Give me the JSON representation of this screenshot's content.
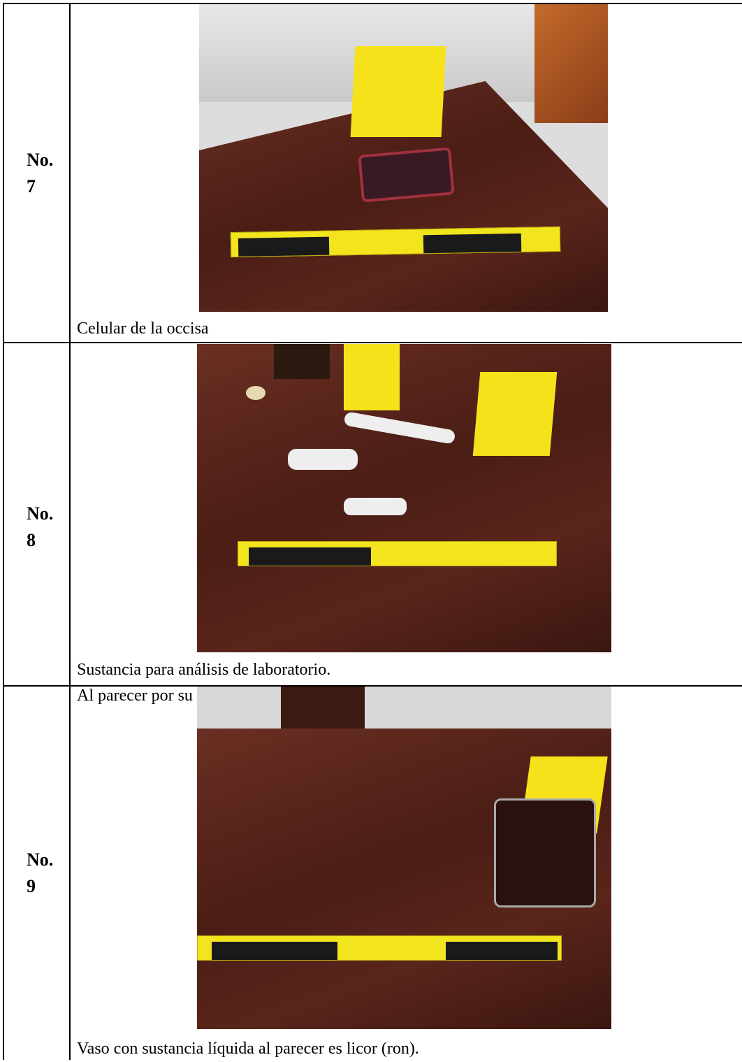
{
  "rows": [
    {
      "label": "No.",
      "number": "7",
      "caption": [
        "Celular de la occisa"
      ]
    },
    {
      "label": "No.",
      "number": "8",
      "caption": [
        "Sustancia para análisis de laboratorio.",
        "Al parecer por su color es cocaína."
      ]
    },
    {
      "label": "No.",
      "number": "9",
      "caption": [
        "Vaso con sustancia líquida al parecer es licor (ron)."
      ]
    }
  ]
}
